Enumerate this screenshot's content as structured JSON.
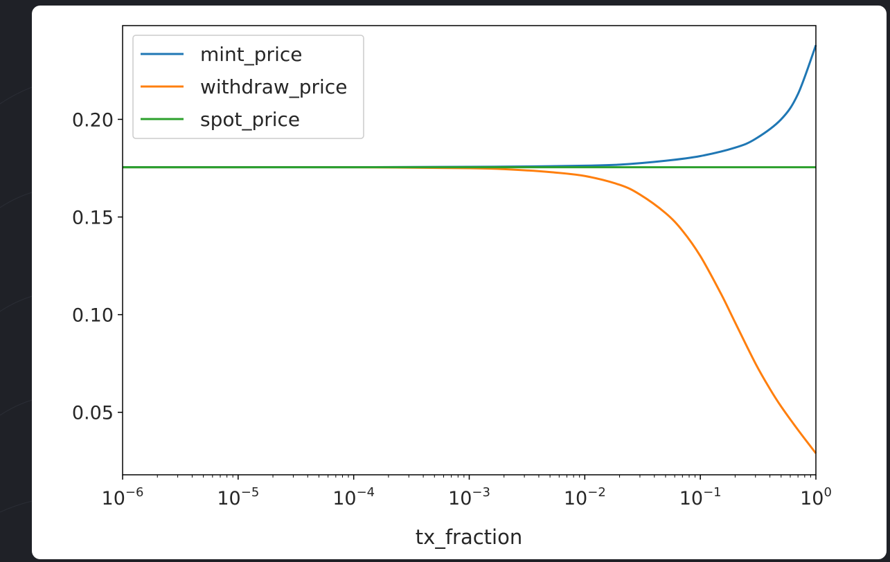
{
  "colors": {
    "page_background": "#1f2127",
    "card_background": "#ffffff",
    "mint_price": "#1f77b4",
    "withdraw_price": "#ff7f0e",
    "spot_price": "#2ca02c"
  },
  "chart_data": {
    "type": "line",
    "title": "",
    "xlabel": "tx_fraction",
    "ylabel": "",
    "xscale": "log",
    "xlim": [
      1e-06,
      1
    ],
    "ylim": [
      0.018,
      0.248
    ],
    "x_ticks": [
      {
        "value": 1e-06,
        "base": "10",
        "exp": "−6"
      },
      {
        "value": 1e-05,
        "base": "10",
        "exp": "−5"
      },
      {
        "value": 0.0001,
        "base": "10",
        "exp": "−4"
      },
      {
        "value": 0.001,
        "base": "10",
        "exp": "−3"
      },
      {
        "value": 0.01,
        "base": "10",
        "exp": "−2"
      },
      {
        "value": 0.1,
        "base": "10",
        "exp": "−1"
      },
      {
        "value": 1,
        "base": "10",
        "exp": "0"
      }
    ],
    "y_ticks": [
      {
        "value": 0.05,
        "label": "0.05"
      },
      {
        "value": 0.1,
        "label": "0.10"
      },
      {
        "value": 0.15,
        "label": "0.15"
      },
      {
        "value": 0.2,
        "label": "0.20"
      }
    ],
    "grid": false,
    "legend_position": "top-left",
    "series": [
      {
        "name": "mint_price",
        "x": [
          1e-06,
          1e-05,
          0.0001,
          0.001,
          0.002,
          0.005,
          0.01,
          0.02,
          0.05,
          0.1,
          0.2,
          0.3,
          0.5,
          0.7,
          1
        ],
        "y": [
          0.1755,
          0.1755,
          0.1755,
          0.1757,
          0.1758,
          0.176,
          0.1763,
          0.1768,
          0.1788,
          0.1812,
          0.1855,
          0.19,
          0.2,
          0.213,
          0.238
        ]
      },
      {
        "name": "withdraw_price",
        "x": [
          1e-06,
          1e-05,
          0.0001,
          0.001,
          0.002,
          0.005,
          0.01,
          0.02,
          0.03,
          0.05,
          0.07,
          0.1,
          0.15,
          0.2,
          0.3,
          0.4,
          0.5,
          0.7,
          1
        ],
        "y": [
          0.1755,
          0.1755,
          0.1755,
          0.175,
          0.1745,
          0.173,
          0.171,
          0.1665,
          0.1615,
          0.152,
          0.143,
          0.13,
          0.111,
          0.096,
          0.075,
          0.062,
          0.053,
          0.041,
          0.029
        ]
      },
      {
        "name": "spot_price",
        "x": [
          1e-06,
          1
        ],
        "y": [
          0.1755,
          0.1755
        ]
      }
    ]
  }
}
